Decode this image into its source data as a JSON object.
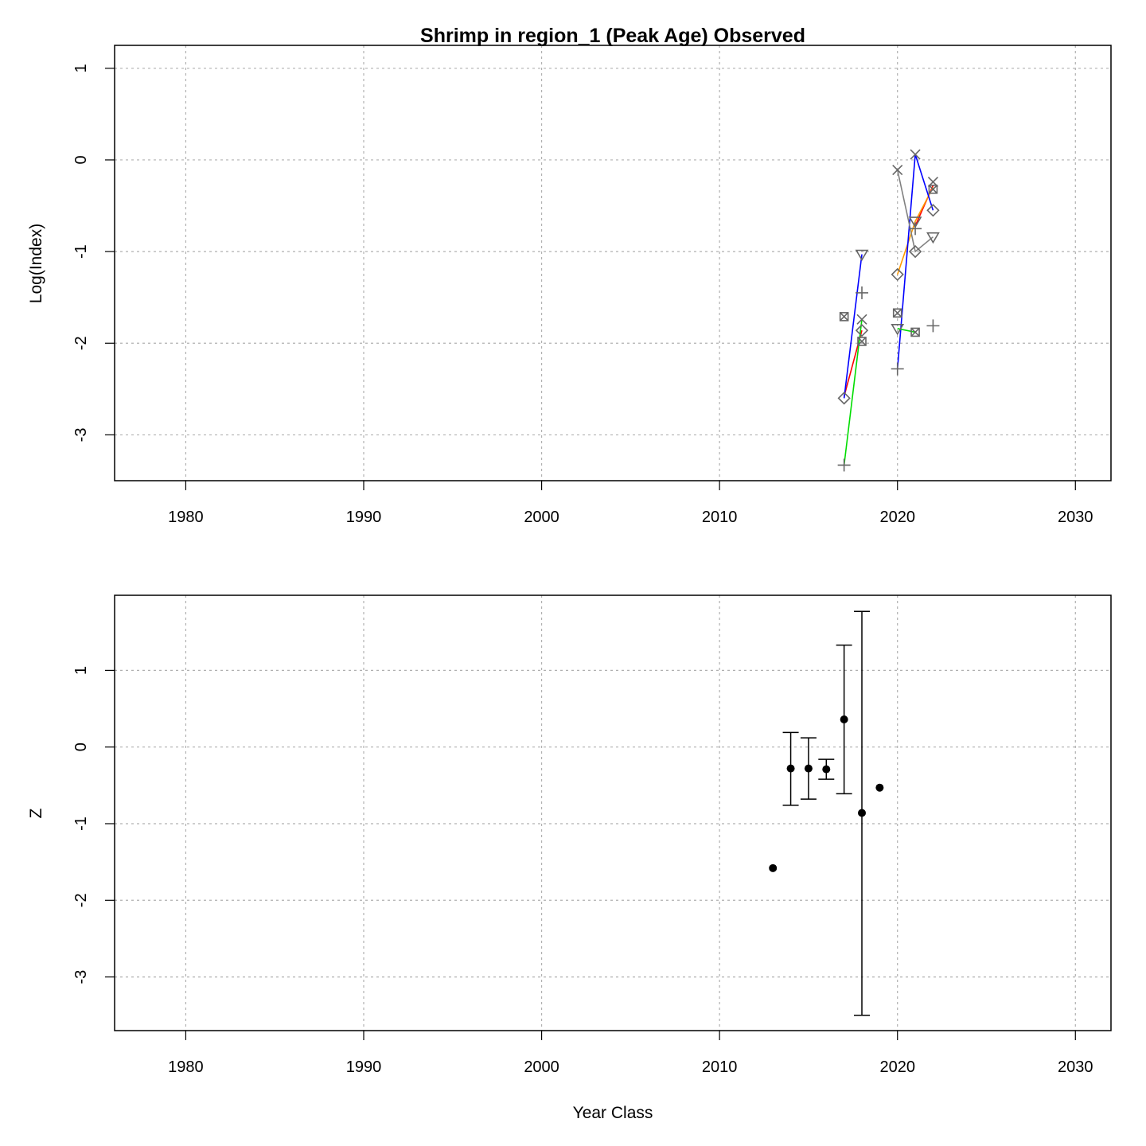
{
  "chart_data": [
    {
      "type": "line",
      "title": "Shrimp in region_1 (Peak Age) Observed",
      "xlabel": "",
      "ylabel": "Log(Index)",
      "xlim": [
        1976,
        2032
      ],
      "ylim": [
        -3.5,
        1.25
      ],
      "xticks": [
        1980,
        1990,
        2000,
        2010,
        2020,
        2030
      ],
      "yticks": [
        -3,
        -2,
        -1,
        0,
        1
      ],
      "grid": true,
      "segments": [
        {
          "color": "#ff0000",
          "x": [
            2017,
            2018
          ],
          "y": [
            -2.58,
            -1.86
          ]
        },
        {
          "color": "#0000ff",
          "x": [
            2017,
            2018
          ],
          "y": [
            -2.6,
            -1.03
          ]
        },
        {
          "color": "#00dd00",
          "x": [
            2017,
            2018
          ],
          "y": [
            -3.33,
            -1.74
          ]
        },
        {
          "color": "#ff0000",
          "x": [
            2021,
            2022
          ],
          "y": [
            -0.72,
            -0.28
          ]
        },
        {
          "color": "#ff9900",
          "x": [
            2020,
            2021,
            2022
          ],
          "y": [
            -1.25,
            -0.67,
            -0.3
          ]
        },
        {
          "color": "#0000ff",
          "x": [
            2020,
            2021,
            2022
          ],
          "y": [
            -2.28,
            0.06,
            -0.55
          ]
        },
        {
          "color": "#00dd00",
          "x": [
            2020,
            2021
          ],
          "y": [
            -1.84,
            -1.88
          ]
        },
        {
          "color": "#808080",
          "x": [
            2020,
            2021,
            2022
          ],
          "y": [
            -0.11,
            -1.0,
            -0.84
          ]
        }
      ],
      "points": [
        {
          "marker": "diamond",
          "x": 2017,
          "y": -2.6
        },
        {
          "marker": "boxx",
          "x": 2017,
          "y": -1.71
        },
        {
          "marker": "plus",
          "x": 2017,
          "y": -3.33
        },
        {
          "marker": "triangle",
          "x": 2018,
          "y": -1.03
        },
        {
          "marker": "plus",
          "x": 2018,
          "y": -1.45
        },
        {
          "marker": "x",
          "x": 2018,
          "y": -1.74
        },
        {
          "marker": "diamond",
          "x": 2018,
          "y": -1.86
        },
        {
          "marker": "boxx",
          "x": 2018,
          "y": -1.98
        },
        {
          "marker": "x",
          "x": 2020,
          "y": -0.11
        },
        {
          "marker": "diamond",
          "x": 2020,
          "y": -1.25
        },
        {
          "marker": "boxx",
          "x": 2020,
          "y": -1.67
        },
        {
          "marker": "triangle",
          "x": 2020,
          "y": -1.84
        },
        {
          "marker": "plus",
          "x": 2020,
          "y": -2.28
        },
        {
          "marker": "x",
          "x": 2021,
          "y": 0.06
        },
        {
          "marker": "triangle",
          "x": 2021,
          "y": -0.67
        },
        {
          "marker": "plus",
          "x": 2021,
          "y": -0.75
        },
        {
          "marker": "diamond",
          "x": 2021,
          "y": -1.0
        },
        {
          "marker": "boxx",
          "x": 2021,
          "y": -1.88
        },
        {
          "marker": "x",
          "x": 2022,
          "y": -0.24
        },
        {
          "marker": "boxx",
          "x": 2022,
          "y": -0.32
        },
        {
          "marker": "diamond",
          "x": 2022,
          "y": -0.55
        },
        {
          "marker": "triangle",
          "x": 2022,
          "y": -0.84
        },
        {
          "marker": "plus",
          "x": 2022,
          "y": -1.81
        }
      ]
    },
    {
      "type": "scatter",
      "title": "",
      "xlabel": "Year Class",
      "ylabel": "Z",
      "xlim": [
        1976,
        2032
      ],
      "ylim": [
        -3.7,
        1.98
      ],
      "xticks": [
        1980,
        1990,
        2000,
        2010,
        2020,
        2030
      ],
      "yticks": [
        -3,
        -2,
        -1,
        0,
        1
      ],
      "grid": true,
      "points": [
        {
          "x": 2013,
          "y": -1.58,
          "lo": null,
          "hi": null
        },
        {
          "x": 2014,
          "y": -0.28,
          "lo": -0.76,
          "hi": 0.19
        },
        {
          "x": 2015,
          "y": -0.28,
          "lo": -0.68,
          "hi": 0.12
        },
        {
          "x": 2016,
          "y": -0.29,
          "lo": -0.42,
          "hi": -0.16
        },
        {
          "x": 2017,
          "y": 0.36,
          "lo": -0.61,
          "hi": 1.33
        },
        {
          "x": 2018,
          "y": -0.86,
          "lo": -3.5,
          "hi": 1.77
        },
        {
          "x": 2019,
          "y": -0.53,
          "lo": null,
          "hi": null
        }
      ]
    }
  ]
}
